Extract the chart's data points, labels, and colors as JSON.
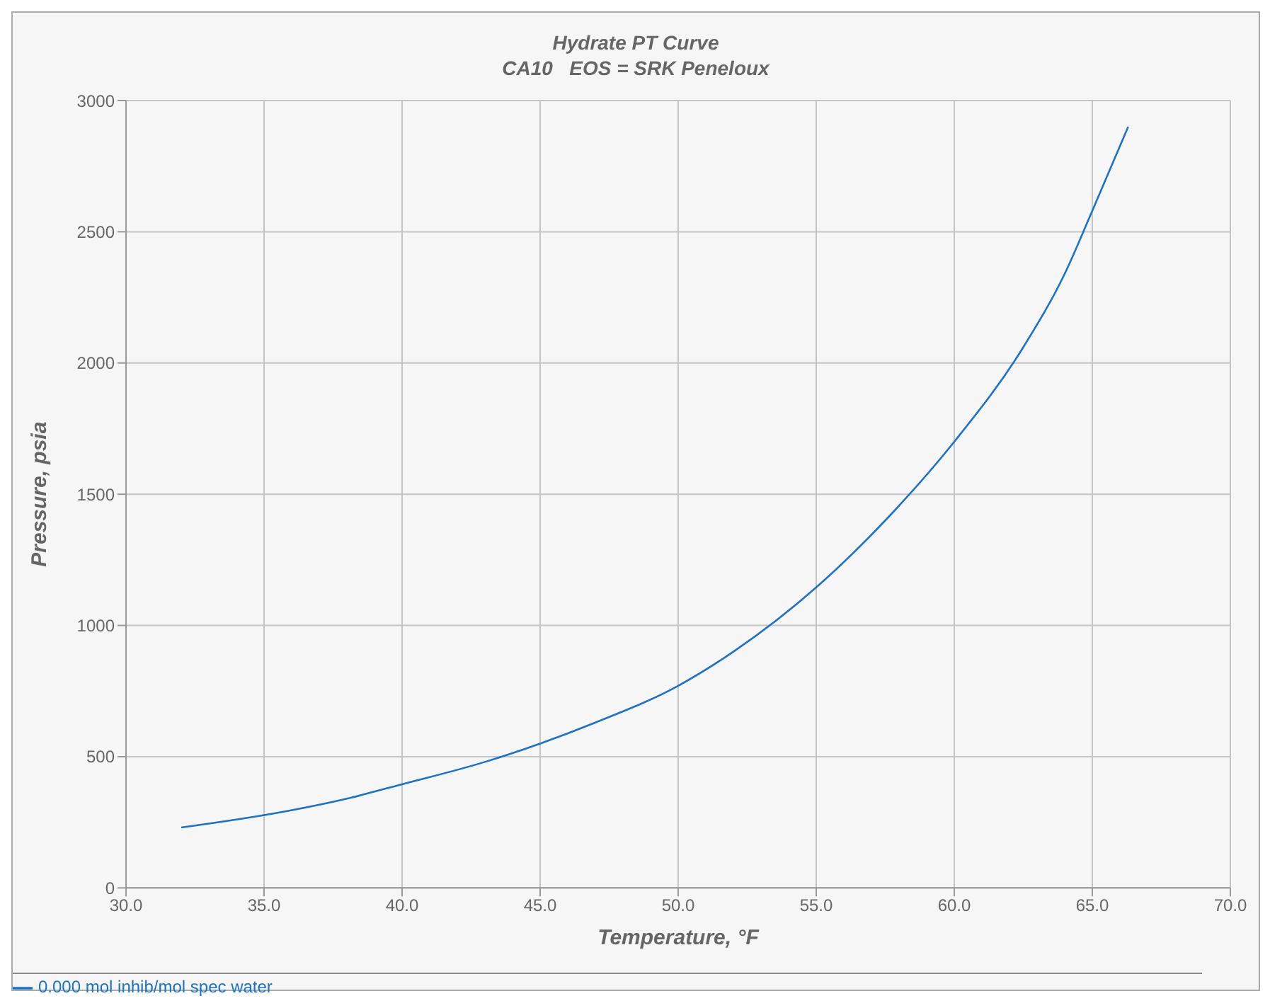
{
  "chart_data": {
    "type": "line",
    "title": "Hydrate PT Curve",
    "subtitle": "CA10   EOS = SRK Peneloux",
    "xlabel": "Temperature, °F",
    "ylabel": "Pressure, psia",
    "x": [
      32,
      35.7,
      38,
      40,
      43,
      45,
      47,
      50,
      52,
      55,
      57.5,
      60,
      62.5,
      64,
      65,
      66.3
    ],
    "series": [
      {
        "name": "0.000 mol inhib/mol spec water",
        "color": "#1a73c8",
        "values": [
          230,
          290,
          340,
          395,
          480,
          550,
          630,
          770,
          900,
          1145,
          1400,
          1700,
          2060,
          2340,
          2580,
          2900
        ]
      }
    ],
    "xlim": [
      30,
      70
    ],
    "xticks": [
      {
        "value": 30,
        "label": "30.0"
      },
      {
        "value": 35,
        "label": "35.0"
      },
      {
        "value": 40,
        "label": "40.0"
      },
      {
        "value": 45,
        "label": "45.0"
      },
      {
        "value": 50,
        "label": "50.0"
      },
      {
        "value": 55,
        "label": "55.0"
      },
      {
        "value": 60,
        "label": "60.0"
      },
      {
        "value": 65,
        "label": "65.0"
      },
      {
        "value": 70,
        "label": "70.0"
      }
    ],
    "ylim": [
      0,
      3000
    ],
    "yticks": [
      0,
      500,
      1000,
      1500,
      2000,
      2500,
      3000
    ],
    "grid": true,
    "legend": "bottom",
    "marker": "none",
    "line_style": "solid"
  }
}
